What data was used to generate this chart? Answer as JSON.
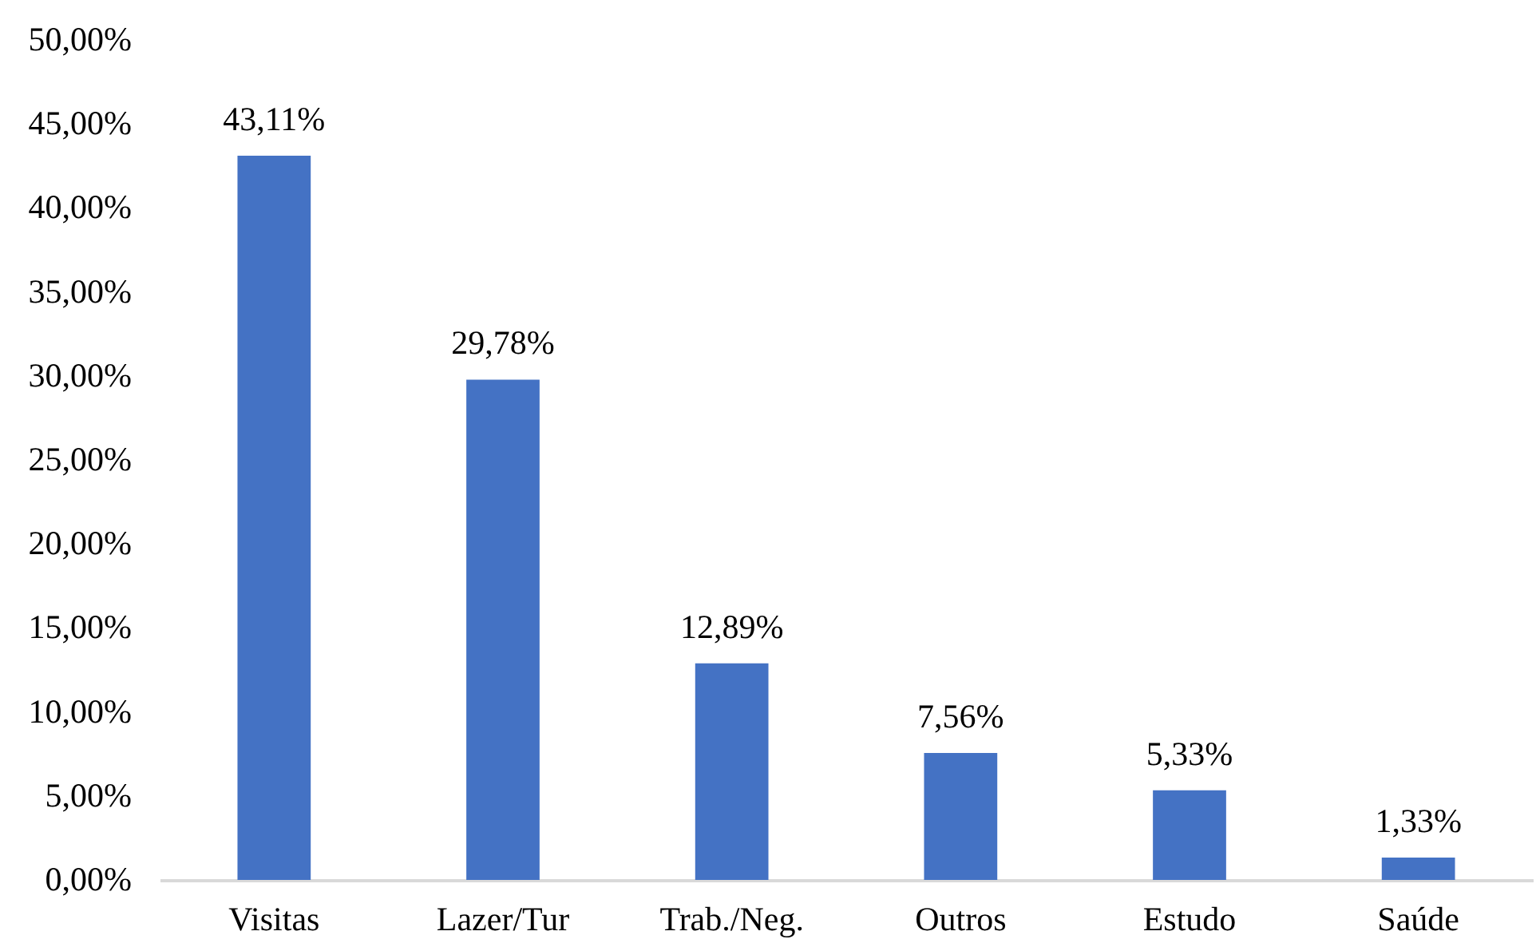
{
  "chart_data": {
    "type": "bar",
    "categories": [
      "Visitas",
      "Lazer/Tur",
      "Trab./Neg.",
      "Outros",
      "Estudo",
      "Saúde"
    ],
    "values": [
      43.11,
      29.78,
      12.89,
      7.56,
      5.33,
      1.33
    ],
    "value_labels": [
      "43,11%",
      "29,78%",
      "12,89%",
      "7,56%",
      "5,33%",
      "1,33%"
    ],
    "color": "#4472c4",
    "ylim": [
      0,
      50
    ],
    "yticks": [
      {
        "value": 0,
        "label": "0,00%"
      },
      {
        "value": 5,
        "label": "5,00%"
      },
      {
        "value": 10,
        "label": "10,00%"
      },
      {
        "value": 15,
        "label": "15,00%"
      },
      {
        "value": 20,
        "label": "20,00%"
      },
      {
        "value": 25,
        "label": "25,00%"
      },
      {
        "value": 30,
        "label": "30,00%"
      },
      {
        "value": 35,
        "label": "35,00%"
      },
      {
        "value": 40,
        "label": "40,00%"
      },
      {
        "value": 45,
        "label": "45,00%"
      },
      {
        "value": 50,
        "label": "50,00%"
      }
    ]
  }
}
